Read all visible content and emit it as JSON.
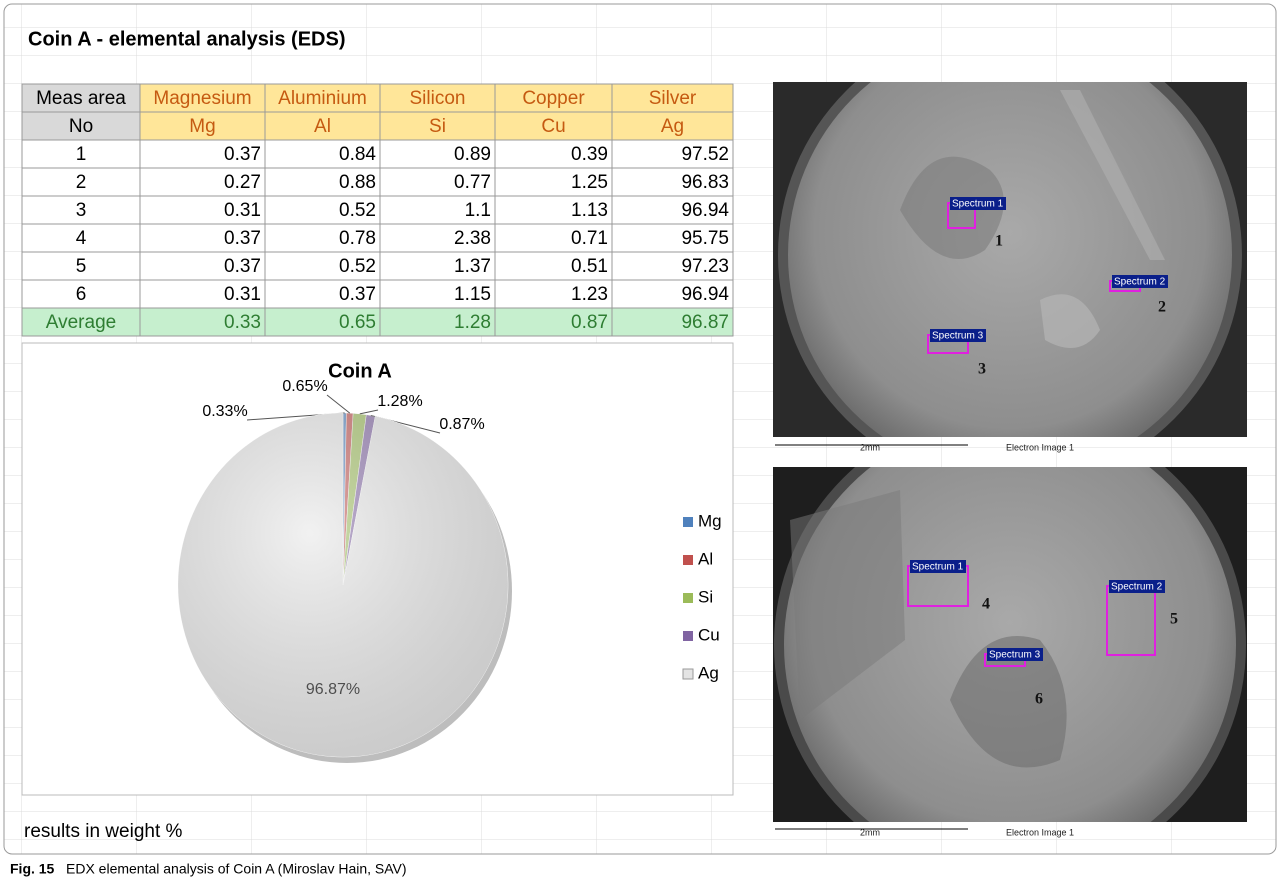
{
  "sheet": {
    "title": "Coin A - elemental analysis (EDS)",
    "note": "results in weight %"
  },
  "table": {
    "header": [
      [
        "Meas area",
        "Magnesium",
        "Aluminium",
        "Silicon",
        "Copper",
        "Silver"
      ],
      [
        "No",
        "Mg",
        "Al",
        "Si",
        "Cu",
        "Ag"
      ]
    ],
    "rows": [
      [
        "1",
        0.37,
        0.84,
        0.89,
        0.39,
        97.52
      ],
      [
        "2",
        0.27,
        0.88,
        0.77,
        1.25,
        96.83
      ],
      [
        "3",
        0.31,
        0.52,
        1.1,
        1.13,
        96.94
      ],
      [
        "4",
        0.37,
        0.78,
        2.38,
        0.71,
        95.75
      ],
      [
        "5",
        0.37,
        0.52,
        1.37,
        0.51,
        97.23
      ],
      [
        "6",
        0.31,
        0.37,
        1.15,
        1.23,
        96.94
      ]
    ],
    "average": [
      "Average",
      0.33,
      0.65,
      1.28,
      0.87,
      96.87
    ]
  },
  "chart_data": {
    "type": "pie",
    "title": "Coin A",
    "categories": [
      "Mg",
      "Al",
      "Si",
      "Cu",
      "Ag"
    ],
    "values": [
      0.33,
      0.65,
      1.28,
      0.87,
      96.87
    ],
    "value_labels": [
      "0.33%",
      "0.65%",
      "1.28%",
      "0.87%",
      "96.87%"
    ],
    "colors": [
      "#4f81bd",
      "#c0504d",
      "#9bbb59",
      "#8064a2",
      "#e4e4e4"
    ],
    "legend": "right"
  },
  "images": [
    {
      "spectra": [
        "Spectrum 1",
        "Spectrum 2",
        "Spectrum 3"
      ],
      "numbers": [
        "1",
        "2",
        "3"
      ],
      "scale": "2mm",
      "caption": "Electron Image 1"
    },
    {
      "spectra": [
        "Spectrum 1",
        "Spectrum 2",
        "Spectrum 3"
      ],
      "numbers": [
        "4",
        "5",
        "6"
      ],
      "scale": "2mm",
      "caption": "Electron Image 1"
    }
  ],
  "caption": {
    "label": "Fig. 15",
    "text": "EDX elemental analysis of Coin A (Miroslav Hain, SAV)"
  }
}
